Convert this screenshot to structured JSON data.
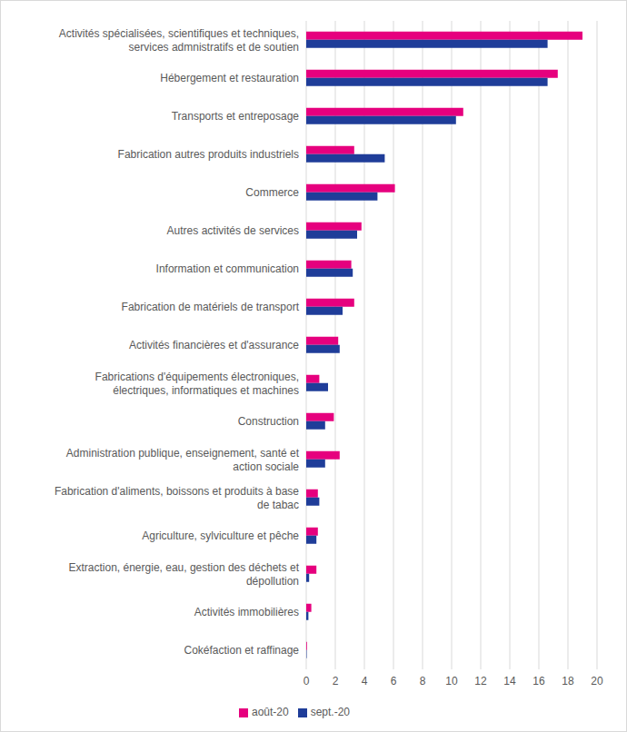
{
  "chart_data": {
    "type": "bar",
    "orientation": "horizontal",
    "categories": [
      "Activités spécialisées, scientifiques et techniques, services admnistratifs et de soutien",
      "Hébergement et restauration",
      "Transports et entreposage",
      "Fabrication autres produits industriels",
      "Commerce",
      "Autres activités de services",
      "Information et communication",
      "Fabrication de matériels de transport",
      "Activités financières et d'assurance",
      "Fabrications d'équipements électroniques, électriques, informatiques et machines",
      "Construction",
      "Administration publique, enseignement, santé et action sociale",
      "Fabrication d'aliments, boissons et produits à base de tabac",
      "Agriculture, sylviculture et pêche",
      "Extraction, énergie, eau, gestion des déchets et dépollution",
      "Activités immobilières",
      "Cokéfaction et raffinage"
    ],
    "series": [
      {
        "name": "août-20",
        "color": "#e6007e",
        "values": [
          19.0,
          17.3,
          10.8,
          3.3,
          6.1,
          3.8,
          3.1,
          3.3,
          2.2,
          0.9,
          1.9,
          2.3,
          0.8,
          0.8,
          0.7,
          0.35,
          0.05
        ]
      },
      {
        "name": "sept.-20",
        "color": "#1f3d99",
        "values": [
          16.6,
          16.6,
          10.3,
          5.4,
          4.9,
          3.5,
          3.2,
          2.5,
          2.3,
          1.5,
          1.3,
          1.3,
          0.9,
          0.7,
          0.2,
          0.15,
          0.03
        ]
      }
    ],
    "xlim": [
      0,
      20
    ],
    "xticks": [
      0,
      2,
      4,
      6,
      8,
      10,
      12,
      14,
      16,
      18,
      20
    ],
    "grid": true,
    "legend": "bottom"
  }
}
